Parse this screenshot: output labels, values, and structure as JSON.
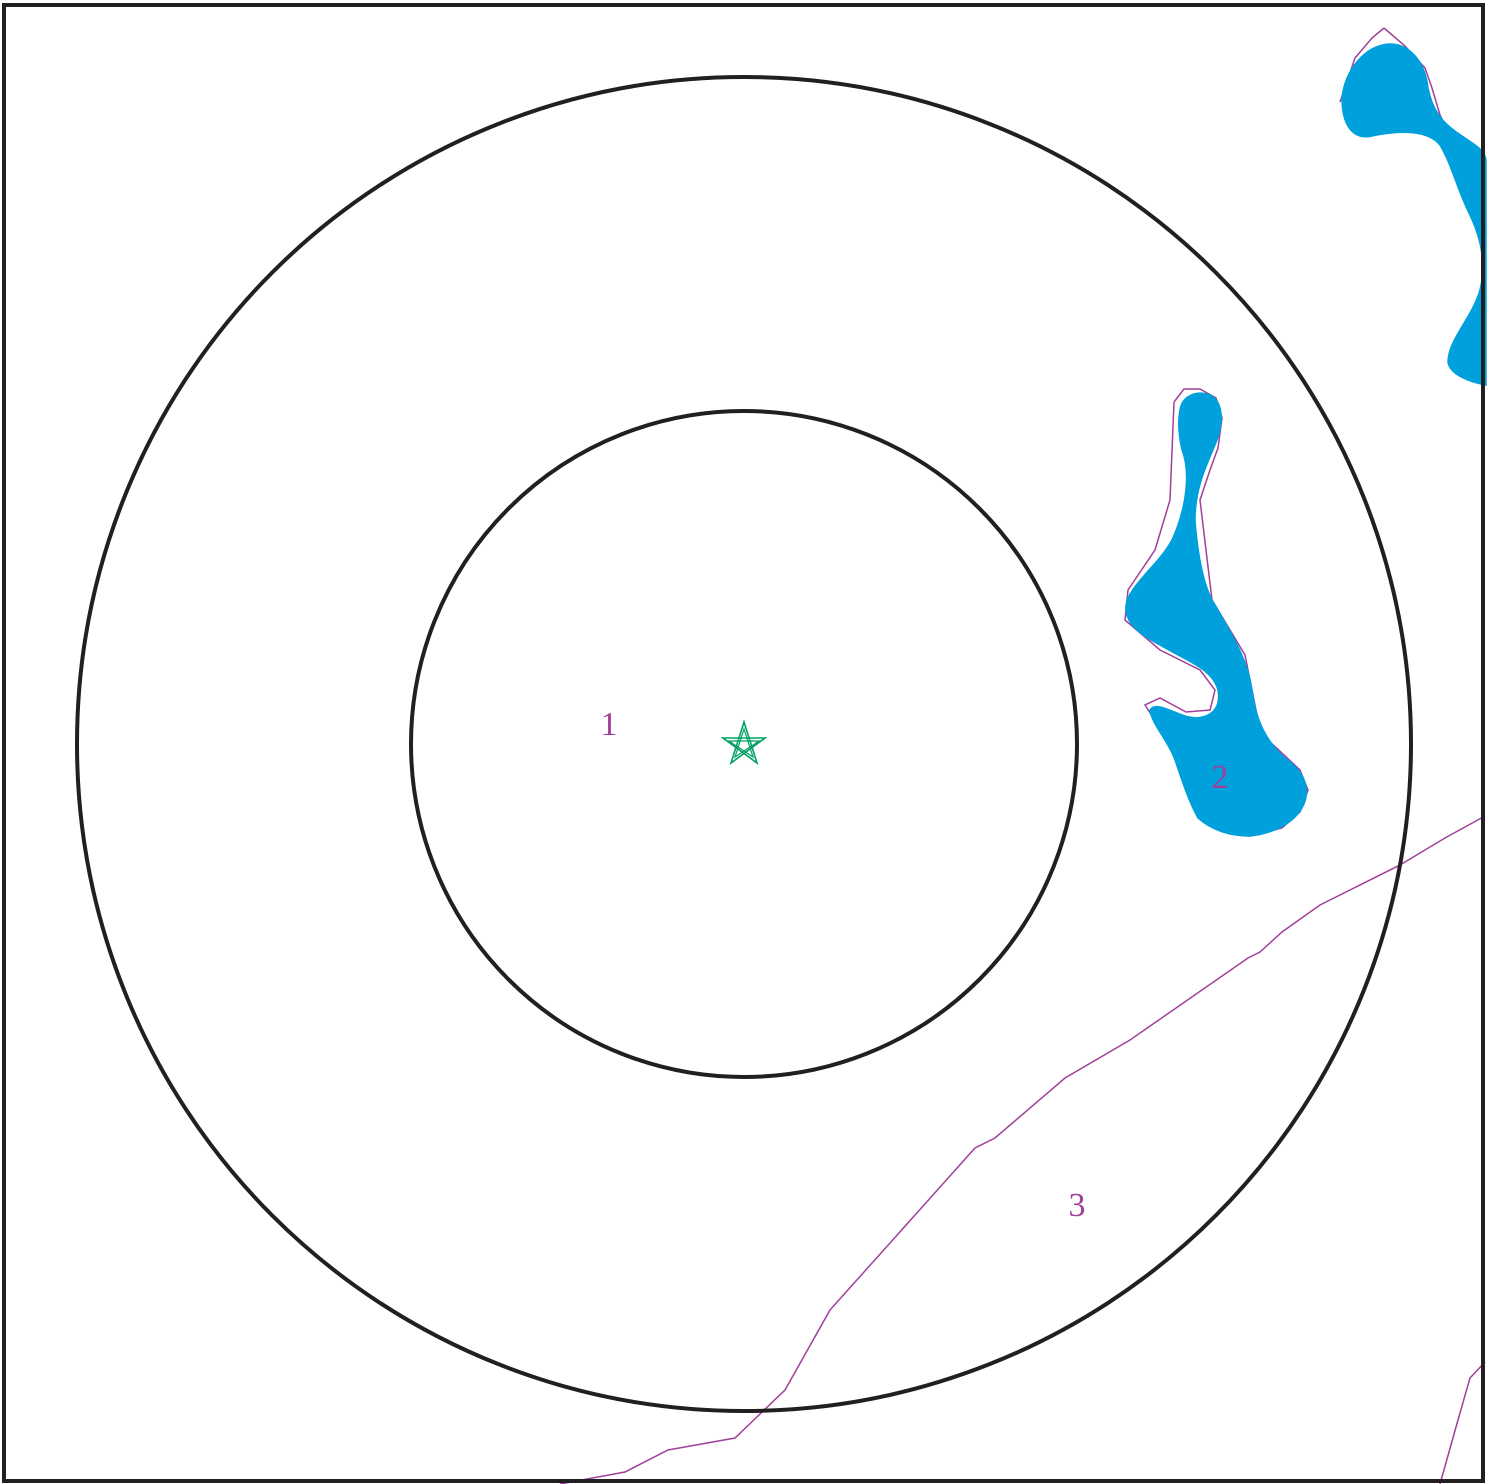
{
  "map": {
    "zone_labels": {
      "inner": "1",
      "water": "2",
      "outer": "3"
    },
    "colors": {
      "background": "#ffffff",
      "frame": "#231f20",
      "ring": "#231f20",
      "water_fill": "#00a0dc",
      "boundary_line": "#a0409a",
      "label": "#a0409a",
      "star": "#00a060"
    },
    "icons": {
      "center_marker": "star-icon"
    }
  }
}
